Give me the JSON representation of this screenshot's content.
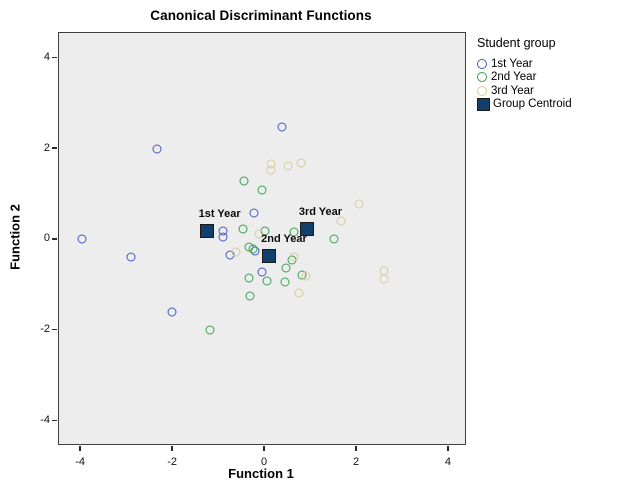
{
  "chart_data": {
    "type": "scatter",
    "title": "Canonical Discriminant Functions",
    "xlabel": "Function 1",
    "ylabel": "Function 2",
    "xlim": [
      -4.46,
      4.37
    ],
    "ylim": [
      -4.52,
      4.54
    ],
    "xticks": [
      -4,
      -2,
      0,
      2,
      4
    ],
    "yticks": [
      -4,
      -2,
      0,
      2,
      4
    ],
    "grid": false,
    "plot_bg": "#ededed",
    "legend_position": "right-outside",
    "legend_title": "Student group",
    "series": [
      {
        "name": "1st Year",
        "marker": "circle",
        "color": "#4459c4",
        "points": [
          [
            -3.95,
            0.01
          ],
          [
            -2.89,
            -0.4
          ],
          [
            -2.33,
            1.99
          ],
          [
            -2.0,
            -1.62
          ],
          [
            -0.9,
            0.18
          ],
          [
            -0.9,
            0.05
          ],
          [
            -0.74,
            -0.35
          ],
          [
            -0.19,
            -0.26
          ],
          [
            -0.21,
            0.58
          ],
          [
            -0.04,
            -0.72
          ],
          [
            0.38,
            2.47
          ]
        ]
      },
      {
        "name": "2nd Year",
        "marker": "circle",
        "color": "#33a34e",
        "points": [
          [
            -0.44,
            1.28
          ],
          [
            -0.05,
            1.09
          ],
          [
            -0.46,
            0.22
          ],
          [
            0.01,
            0.17
          ],
          [
            0.66,
            0.15
          ],
          [
            1.53,
            -0.01
          ],
          [
            -0.33,
            -0.18
          ],
          [
            -0.25,
            -0.23
          ],
          [
            0.6,
            -0.46
          ],
          [
            0.48,
            -0.65
          ],
          [
            0.82,
            -0.79
          ],
          [
            -0.33,
            -0.87
          ],
          [
            0.06,
            -0.92
          ],
          [
            0.46,
            -0.95
          ],
          [
            -0.3,
            -1.26
          ],
          [
            -1.17,
            -2.01
          ]
        ]
      },
      {
        "name": "3rd Year",
        "marker": "circle",
        "color": "#d6ce96",
        "points": [
          [
            0.16,
            1.65
          ],
          [
            0.16,
            1.52
          ],
          [
            0.51,
            1.61
          ],
          [
            0.81,
            1.68
          ],
          [
            2.07,
            0.78
          ],
          [
            1.67,
            0.4
          ],
          [
            -0.1,
            0.12
          ],
          [
            -0.61,
            -0.29
          ],
          [
            0.65,
            -0.4
          ],
          [
            0.92,
            -0.82
          ],
          [
            2.6,
            -0.7
          ],
          [
            2.6,
            -0.89
          ],
          [
            0.76,
            -1.2
          ]
        ]
      },
      {
        "name": "Group Centroid",
        "marker": "square",
        "color": "#133f6d",
        "points": [
          [
            -1.25,
            0.18
          ],
          [
            0.11,
            -0.37
          ],
          [
            0.93,
            0.22
          ]
        ],
        "point_labels": [
          "1st Year",
          "2nd Year",
          "3rd Year"
        ]
      }
    ]
  }
}
